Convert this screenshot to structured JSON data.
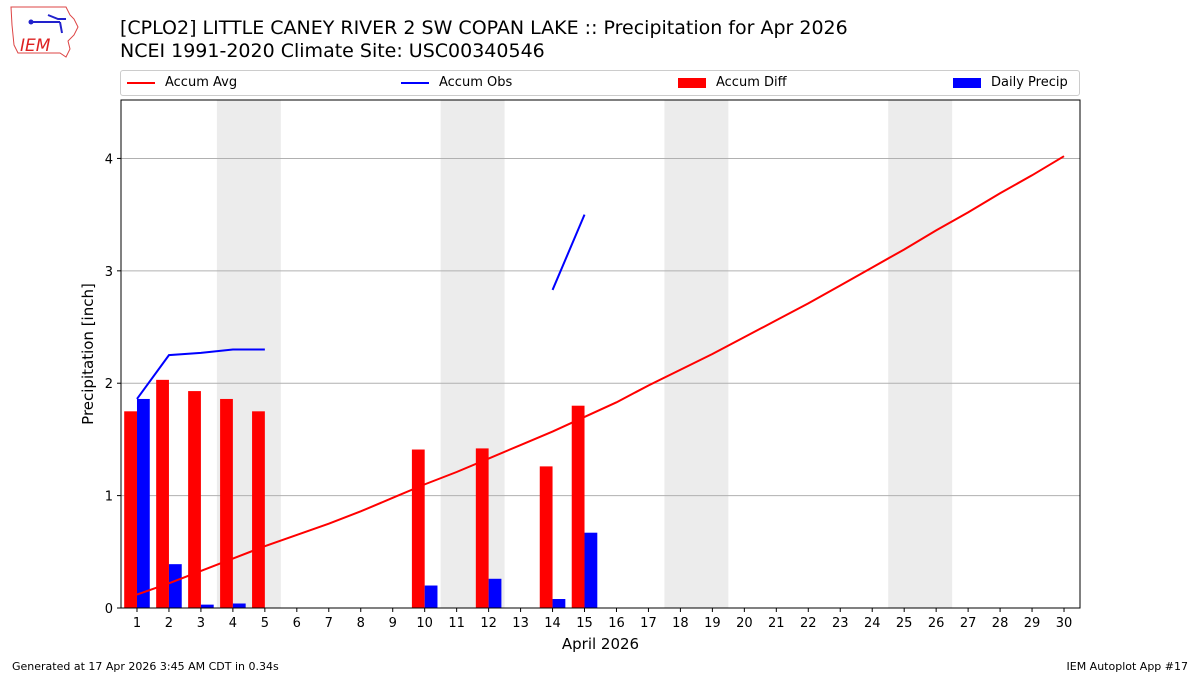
{
  "header": {
    "title_line1": "[CPLO2] LITTLE CANEY RIVER 2 SW COPAN LAKE :: Precipitation for Apr 2026",
    "title_line2": "NCEI 1991-2020 Climate Site: USC00340546",
    "logo_text": "IEM"
  },
  "footer": {
    "left": "Generated at 17 Apr 2026 3:45 AM CDT in 0.34s",
    "right": "IEM Autoplot App #17"
  },
  "chart_data": {
    "type": "bar",
    "xlabel": "April 2026",
    "ylabel": "Precipitation [inch]",
    "xlim": [
      0.5,
      30.5
    ],
    "ylim": [
      0,
      4.52
    ],
    "yticks": [
      0,
      1,
      2,
      3,
      4
    ],
    "x": [
      1,
      2,
      3,
      4,
      5,
      6,
      7,
      8,
      9,
      10,
      11,
      12,
      13,
      14,
      15,
      16,
      17,
      18,
      19,
      20,
      21,
      22,
      23,
      24,
      25,
      26,
      27,
      28,
      29,
      30
    ],
    "weekend_shading": [
      [
        3.5,
        5.5
      ],
      [
        10.5,
        12.5
      ],
      [
        17.5,
        19.5
      ],
      [
        24.5,
        26.5
      ]
    ],
    "grid": "y",
    "legend_placement": "top",
    "series": [
      {
        "name": "Accum Avg",
        "type": "line",
        "color": "#ff0000",
        "values": [
          0.12,
          0.22,
          0.33,
          0.44,
          0.55,
          0.65,
          0.75,
          0.86,
          0.98,
          1.1,
          1.21,
          1.33,
          1.45,
          1.57,
          1.7,
          1.83,
          1.98,
          2.12,
          2.26,
          2.41,
          2.56,
          2.71,
          2.87,
          3.03,
          3.19,
          3.36,
          3.52,
          3.69,
          3.85,
          4.02
        ]
      },
      {
        "name": "Accum Obs",
        "type": "line",
        "color": "#0000ff",
        "values": [
          1.86,
          2.25,
          2.27,
          2.3,
          2.3,
          null,
          null,
          null,
          null,
          null,
          null,
          null,
          null,
          2.83,
          3.5,
          null,
          null,
          null,
          null,
          null,
          null,
          null,
          null,
          null,
          null,
          null,
          null,
          null,
          null,
          null
        ]
      },
      {
        "name": "Accum Diff",
        "type": "bar",
        "color": "#ff0000",
        "values": [
          1.75,
          2.03,
          1.93,
          1.86,
          1.75,
          0,
          0,
          0,
          0,
          1.41,
          0,
          1.42,
          0,
          1.26,
          1.8,
          null,
          null,
          null,
          null,
          null,
          null,
          null,
          null,
          null,
          null,
          null,
          null,
          null,
          null,
          null
        ]
      },
      {
        "name": "Daily Precip",
        "type": "bar",
        "color": "#0000ff",
        "values": [
          1.86,
          0.39,
          0.03,
          0.04,
          0,
          0,
          0,
          0,
          0,
          0.2,
          0,
          0.26,
          0,
          0.08,
          0.67,
          null,
          null,
          null,
          null,
          null,
          null,
          null,
          null,
          null,
          null,
          null,
          null,
          null,
          null,
          null
        ]
      }
    ]
  }
}
